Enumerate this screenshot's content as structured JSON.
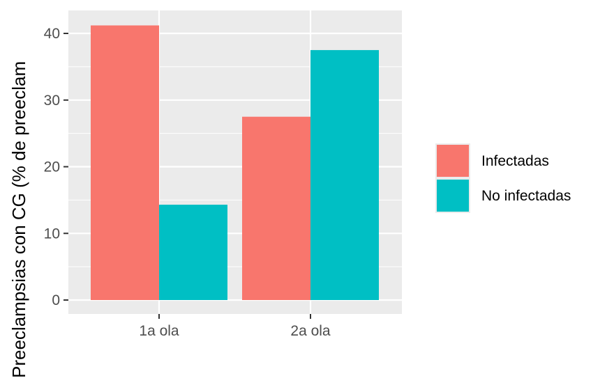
{
  "chart_data": {
    "type": "bar",
    "categories": [
      "1a ola",
      "2a ola"
    ],
    "series": [
      {
        "name": "Infectadas",
        "color": "#F8766D",
        "values": [
          41.2,
          27.5
        ]
      },
      {
        "name": "No infectadas",
        "color": "#00BFC4",
        "values": [
          14.3,
          37.5
        ]
      }
    ],
    "ylabel": "Preeclampsias con CG (% de preeclam",
    "xlabel": "",
    "ylim": [
      0,
      42.5
    ],
    "yticks": [
      0,
      10,
      20,
      30,
      40
    ],
    "grid": true,
    "legend_position": "right",
    "panel_color": "#EBEBEB",
    "grid_color": "#FFFFFF"
  }
}
